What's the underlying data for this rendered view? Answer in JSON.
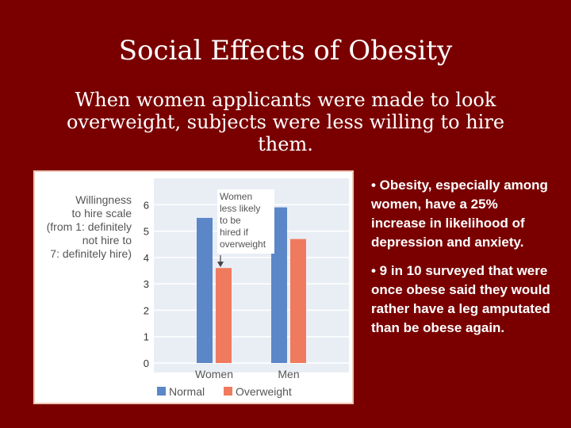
{
  "slide": {
    "title": "Social Effects of Obesity",
    "subtitle": "When women applicants were made to look overweight, subjects were less willing to hire them."
  },
  "bullets": [
    "• Obesity, especially among women, have a 25% increase in likelihood of depression and anxiety.",
    "• 9 in 10 surveyed that were once obese said they would rather have a leg amputated than be obese again."
  ],
  "chart_data": {
    "type": "bar",
    "ylabel_lines": [
      "Willingness",
      "to hire scale",
      "(from 1: definitely",
      "not hire to",
      "7: definitely hire)"
    ],
    "categories": [
      "Women",
      "Men"
    ],
    "series": [
      {
        "name": "Normal",
        "values": [
          5.5,
          5.9
        ],
        "color": "#5b86c8"
      },
      {
        "name": "Overweight",
        "values": [
          3.6,
          4.7
        ],
        "color": "#f07a5e"
      }
    ],
    "ylim": [
      0,
      7
    ],
    "yticks": [
      0,
      1,
      2,
      3,
      4,
      5,
      6
    ],
    "annotation_lines": [
      "Women",
      "less likely",
      "to be",
      "hired if",
      "overweight"
    ],
    "legend_position": "bottom",
    "colors": {
      "plot_background": "#e9eef5",
      "gridline": "#ffffff",
      "panel_border": "#f2c8b8"
    }
  }
}
